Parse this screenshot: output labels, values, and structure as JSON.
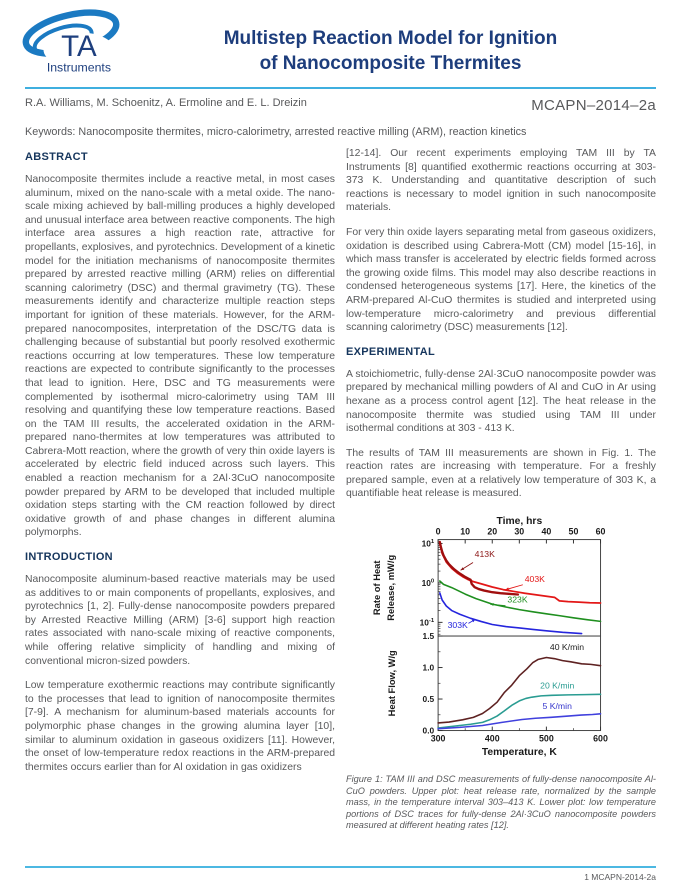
{
  "page": {
    "accent_color": "#3fafdf",
    "heading_color": "#16365d",
    "title_color": "#1d3d7c",
    "body_color": "#58595b"
  },
  "header": {
    "logo": {
      "ta": "TA",
      "instruments": "Instruments"
    },
    "title_line1": "Multistep Reaction Model for Ignition",
    "title_line2": "of Nanocomposite Thermites",
    "authors": "R.A. Williams, M. Schoenitz, A. Ermoline and E. L. Dreizin",
    "doc_code": "MCAPN–2014–2a",
    "keywords": "Keywords: Nanocomposite thermites, micro-calorimetry, arrested reactive milling (ARM), reaction kinetics"
  },
  "sections": {
    "abstract": {
      "heading": "ABSTRACT",
      "paragraphs": [
        "Nanocomposite thermites include a reactive metal, in most cases aluminum, mixed on the nano-scale with a metal oxide. The nano-scale mixing achieved by ball-milling produces a highly developed and unusual interface area between reactive components. The high interface area assures a high reaction rate, attractive for propellants, explosives, and pyrotechnics. Development of a kinetic model for the initiation mechanisms of nanocomposite thermites prepared by arrested reactive milling (ARM) relies on differential scanning calorimetry (DSC) and thermal gravimetry (TG). These measurements identify and characterize multiple reaction steps important for ignition of these materials. However, for the ARM-prepared nanocomposites, interpretation of the DSC/TG data is challenging because of substantial but poorly resolved exothermic reactions occurring at low temperatures. These low temperature reactions are expected to contribute significantly to the processes that lead to ignition. Here, DSC and TG measurements were complemented by isothermal micro-calorimetry using TAM III resolving and quantifying these low temperature reactions. Based on the TAM III results, the accelerated oxidation in the ARM-prepared nano-thermites at low temperatures was attributed to Cabrera-Mott reaction, where the growth of very thin oxide layers is accelerated by electric field induced across such layers. This enabled a reaction mechanism for a 2Al·3CuO nanocomposite powder prepared by ARM to be developed that included multiple oxidation steps starting with the CM reaction followed by direct oxidative growth of and phase changes in different alumina polymorphs."
      ]
    },
    "introduction": {
      "heading": "INTRODUCTION",
      "paragraphs": [
        "Nanocomposite aluminum-based reactive materials may be used as additives to or main components of propellants, explosives, and pyrotechnics [1, 2]. Fully-dense nanocomposite powders prepared by Arrested Reactive Milling (ARM) [3-6] support high reaction rates associated with nano-scale mixing of reactive components, while offering relative simplicity of handling and mixing of conventional micron-sized powders.",
        "Low temperature exothermic reactions may contribute significantly to the processes that lead to ignition of nanocomposite thermites [7-9]. A mechanism for aluminum-based materials accounts for polymorphic phase changes in the growing alumina layer [10], similar to aluminum oxidation in gaseous oxidizers [11]. However, the onset of low-temperature redox reactions in the ARM-prepared thermites occurs earlier than for Al oxidation in gas oxidizers"
      ]
    },
    "right_top": {
      "paragraphs": [
        "[12-14]. Our recent experiments employing TAM III by TA Instruments [8] quantified exothermic reactions occurring at 303-373 K. Understanding and quantitative description of such reactions is necessary to model ignition in such nanocomposite materials.",
        "For very thin oxide layers separating metal from gaseous oxidizers, oxidation is described using Cabrera-Mott (CM) model [15-16], in which mass transfer is accelerated by electric fields formed across the growing oxide films. This model may also describe reactions in condensed heterogeneous systems [17]. Here, the kinetics of the ARM-prepared Al-CuO thermites is studied and interpreted using low-temperature micro-calorimetry and previous differential scanning calorimetry (DSC) measurements [12]."
      ]
    },
    "experimental": {
      "heading": "EXPERIMENTAL",
      "paragraphs": [
        "A stoichiometric, fully-dense 2Al·3CuO nanocomposite powder was prepared by mechanical milling powders of Al and CuO in Ar using hexane as a process control agent [12]. The heat release in the nanocomposite thermite was studied using TAM III under isothermal conditions at 303 - 413 K.",
        "The results of TAM III measurements are shown in Fig. 1. The reaction rates are increasing with temperature. For a freshly prepared sample, even at a relatively low temperature of 303 K, a quantifiable heat release is measured."
      ]
    }
  },
  "figure": {
    "caption": "Figure 1: TAM III and DSC measurements of fully-dense nanocomposite Al-CuO powders. Upper plot: heat release rate, normalized by the sample mass, in the temperature interval 303–413 K. Lower plot: low temperature portions of DSC traces for fully-dense 2Al·3CuO nanocomposite powders measured at different heating rates [12]."
  },
  "footer": {
    "page_label": "1 MCAPN-2014-2a"
  },
  "chart_data": [
    {
      "id": "tam-isothermal",
      "type": "line",
      "xlabel": "Time, hrs",
      "ylabel": [
        "Rate of Heat",
        "Release, mW/g"
      ],
      "xlim": [
        0,
        60
      ],
      "xticks": [
        0,
        10,
        20,
        30,
        40,
        50,
        60
      ],
      "yscale": "log",
      "ylim": [
        0.045,
        12.6
      ],
      "yticks": [
        {
          "v": 10,
          "exp": "1"
        },
        {
          "v": 1,
          "exp": "0"
        },
        {
          "v": 0.1,
          "exp": "-1"
        }
      ],
      "grid": false,
      "series": [
        {
          "name": "403K",
          "color": "#e31717",
          "width": 1.8,
          "points": [
            [
              0.6,
              10
            ],
            [
              1.5,
              5.6
            ],
            [
              3,
              3.4
            ],
            [
              5,
              2.35
            ],
            [
              7,
              1.8
            ],
            [
              9,
              1.45
            ],
            [
              11,
              1.22
            ],
            [
              13,
              1.08
            ],
            [
              16,
              0.95
            ],
            [
              20,
              0.79
            ],
            [
              24,
              0.68
            ],
            [
              28,
              0.61
            ],
            [
              32,
              0.55
            ],
            [
              36,
              0.5
            ],
            [
              40,
              0.46
            ],
            [
              43,
              0.43
            ],
            [
              44.8,
              0.35
            ],
            [
              48,
              0.335
            ],
            [
              52,
              0.325
            ],
            [
              56,
              0.315
            ],
            [
              60,
              0.31
            ]
          ]
        },
        {
          "name": "413K",
          "color": "#a00e0e",
          "width": 2.4,
          "points": [
            [
              0.6,
              11
            ],
            [
              1,
              8.2
            ],
            [
              1.5,
              6.2
            ],
            [
              2,
              5
            ],
            [
              3,
              3.7
            ],
            [
              4,
              3
            ],
            [
              5,
              2.55
            ],
            [
              6,
              2.2
            ],
            [
              7,
              1.95
            ],
            [
              8,
              1.73
            ],
            [
              9,
              1.56
            ],
            [
              10,
              1.42
            ],
            [
              11,
              1.3
            ],
            [
              12,
              1.2
            ],
            [
              12.4,
              0.95
            ],
            [
              13.5,
              0.78
            ],
            [
              15,
              0.7
            ],
            [
              17,
              0.64
            ],
            [
              20,
              0.58
            ],
            [
              23,
              0.55
            ],
            [
              26,
              0.53
            ],
            [
              29.5,
              0.51
            ]
          ]
        },
        {
          "name": "323K",
          "color": "#1f8f1f",
          "width": 1.6,
          "points": [
            [
              0.6,
              1.12
            ],
            [
              2,
              0.92
            ],
            [
              5,
              0.76
            ],
            [
              8,
              0.61
            ],
            [
              10,
              0.52
            ],
            [
              14,
              0.4
            ],
            [
              20,
              0.29
            ],
            [
              25,
              0.245
            ],
            [
              30,
              0.21
            ],
            [
              35,
              0.185
            ],
            [
              40,
              0.165
            ],
            [
              45,
              0.147
            ],
            [
              50,
              0.13
            ],
            [
              55,
              0.117
            ],
            [
              60,
              0.106
            ]
          ]
        },
        {
          "name": "303K",
          "color": "#2525dd",
          "width": 1.6,
          "points": [
            [
              0.6,
              0.56
            ],
            [
              1.5,
              0.37
            ],
            [
              3,
              0.26
            ],
            [
              5,
              0.2
            ],
            [
              8,
              0.16
            ],
            [
              12,
              0.127
            ],
            [
              16,
              0.105
            ],
            [
              20,
              0.088
            ],
            [
              25,
              0.078
            ],
            [
              30,
              0.072
            ],
            [
              35,
              0.066
            ],
            [
              40,
              0.061
            ],
            [
              46,
              0.056
            ],
            [
              53,
              0.052
            ]
          ]
        }
      ],
      "annotations": [
        {
          "text": "413K",
          "color": "#8c1616",
          "x": 13.5,
          "y": 4.6,
          "arrow": {
            "x1": 12.9,
            "y1": 3.3,
            "x2": 8.3,
            "y2": 2.1
          }
        },
        {
          "text": "403K",
          "color": "#e31717",
          "x": 32,
          "y": 1.06,
          "arrow": {
            "x1": 31.3,
            "y1": 0.9,
            "x2": 24.8,
            "y2": 0.67
          }
        },
        {
          "text": "323K",
          "color": "#1f8f1f",
          "x": 25.6,
          "y": 0.315,
          "arrow": {
            "x1": 24.9,
            "y1": 0.265,
            "x2": 19.2,
            "y2": 0.29
          }
        },
        {
          "text": "303K",
          "color": "#2525dd",
          "x": 3.5,
          "y": 0.072,
          "arrow": {
            "x1": 11.2,
            "y1": 0.094,
            "x2": 13.8,
            "y2": 0.12
          }
        }
      ]
    },
    {
      "id": "dsc-traces",
      "type": "line",
      "xlabel": "Temperature, K",
      "ylabel": [
        "Heat Flow, W/g"
      ],
      "xlim": [
        300,
        600
      ],
      "xticks": [
        300,
        400,
        500,
        600
      ],
      "xminor": [
        350,
        450,
        550
      ],
      "yscale": "linear",
      "ylim": [
        0,
        1.5
      ],
      "yticks": [
        {
          "v": 0,
          "label": "0.0"
        },
        {
          "v": 0.5,
          "label": "0.5"
        },
        {
          "v": 1,
          "label": "1.0"
        },
        {
          "v": 1.5,
          "label": "1.5"
        }
      ],
      "grid": false,
      "series": [
        {
          "name": "40 K/min",
          "color": "#5e2222",
          "width": 1.6,
          "points": [
            [
              300,
              0.12
            ],
            [
              320,
              0.135
            ],
            [
              345,
              0.17
            ],
            [
              365,
              0.21
            ],
            [
              382,
              0.27
            ],
            [
              395,
              0.35
            ],
            [
              409,
              0.45
            ],
            [
              422,
              0.6
            ],
            [
              436,
              0.72
            ],
            [
              450,
              0.87
            ],
            [
              464,
              0.98
            ],
            [
              475,
              1.08
            ],
            [
              485,
              1.13
            ],
            [
              500,
              1.16
            ],
            [
              515,
              1.14
            ],
            [
              530,
              1.11
            ],
            [
              545,
              1.09
            ],
            [
              565,
              1.06
            ],
            [
              582,
              1.05
            ],
            [
              600,
              1.03
            ]
          ]
        },
        {
          "name": "20 K/min",
          "color": "#2a9c92",
          "width": 1.6,
          "points": [
            [
              300,
              0.04
            ],
            [
              330,
              0.07
            ],
            [
              360,
              0.1
            ],
            [
              382,
              0.13
            ],
            [
              395,
              0.17
            ],
            [
              409,
              0.23
            ],
            [
              422,
              0.31
            ],
            [
              436,
              0.4
            ],
            [
              450,
              0.47
            ],
            [
              462,
              0.51
            ],
            [
              473,
              0.53
            ],
            [
              490,
              0.55
            ],
            [
              510,
              0.56
            ],
            [
              540,
              0.565
            ],
            [
              570,
              0.57
            ],
            [
              600,
              0.575
            ]
          ]
        },
        {
          "name": "5 K/min",
          "color": "#4040dd",
          "width": 1.6,
          "points": [
            [
              300,
              0.03
            ],
            [
              340,
              0.05
            ],
            [
              382,
              0.08
            ],
            [
              418,
              0.13
            ],
            [
              455,
              0.175
            ],
            [
              480,
              0.195
            ],
            [
              509,
              0.21
            ],
            [
              540,
              0.23
            ],
            [
              564,
              0.245
            ],
            [
              585,
              0.255
            ],
            [
              600,
              0.265
            ]
          ]
        }
      ],
      "annotations": [
        {
          "text": "40 K/min",
          "color": "#222222",
          "x": 538,
          "y": 1.28,
          "anchor": "middle"
        },
        {
          "text": "20 K/min",
          "color": "#2a9c92",
          "x": 520,
          "y": 0.67,
          "anchor": "middle"
        },
        {
          "text": "5 K/min",
          "color": "#3535cc",
          "x": 520,
          "y": 0.345,
          "anchor": "middle"
        }
      ]
    }
  ]
}
